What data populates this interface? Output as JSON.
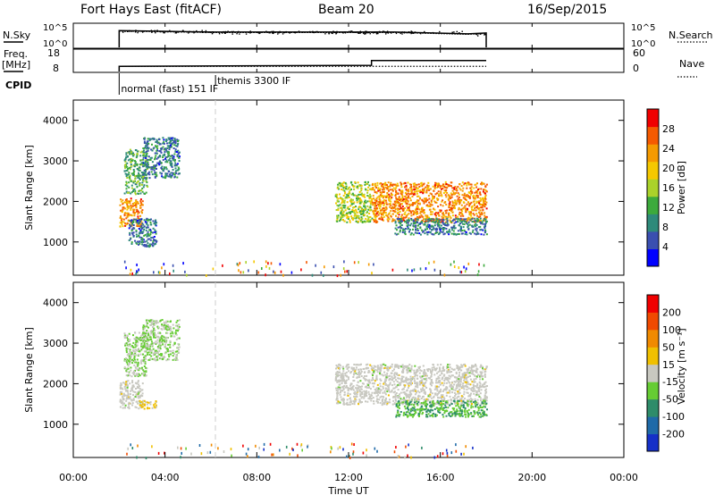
{
  "header": {
    "station": "Fort Hays East (fitACF)",
    "beam": "Beam 20",
    "date": "16/Sep/2015"
  },
  "nsky_panel": {
    "left_label": "N.Sky",
    "left_ticks": [
      "10^5",
      "10^0"
    ],
    "right_ticks": [
      "10^5",
      "10^0"
    ],
    "right_label": "N.Search"
  },
  "freq_panel": {
    "left_label_line1": "Freq.",
    "left_label_line2": "[MHz]",
    "left_ticks": [
      "18",
      "8"
    ],
    "right_ticks": [
      "60",
      "0"
    ],
    "right_label": "Nave"
  },
  "cpid": {
    "label": "CPID",
    "modes": [
      {
        "text": "normal (fast) 151 IF",
        "start_hour": 2.0
      },
      {
        "text": "themis 3300 IF",
        "start_hour": 6.2
      }
    ]
  },
  "x_axis": {
    "label": "Time UT",
    "ticks": [
      "00:00",
      "04:00",
      "08:00",
      "12:00",
      "16:00",
      "20:00",
      "00:00"
    ]
  },
  "power_colorbar": {
    "label": "Power [dB]",
    "ticks": [
      "28",
      "24",
      "20",
      "16",
      "12",
      "8",
      "4"
    ],
    "colors": [
      "#0000ff",
      "#3a4fb0",
      "#2e8a7a",
      "#3caa3c",
      "#aad22a",
      "#f5c800",
      "#f59a00",
      "#f55a00",
      "#f00000"
    ]
  },
  "velocity_colorbar": {
    "label": "Velocity [m s⁻¹]",
    "ticks": [
      "200",
      "100",
      "50",
      "15",
      "-15",
      "-50",
      "-100",
      "-200"
    ],
    "colors": [
      "#1530c8",
      "#1f6aa8",
      "#2e8c6a",
      "#66cc33",
      "#c8c8c0",
      "#f0c000",
      "#f08a00",
      "#f04a00",
      "#f00000"
    ]
  },
  "chart_data": [
    {
      "type": "line",
      "title": "Fort Hays East (fitACF) Beam 20 16/Sep/2015",
      "xlabel": "Time UT",
      "ylabel": "N.Sky",
      "xlim": [
        0,
        24
      ],
      "ylim_log10": [
        0,
        5
      ],
      "series": [
        {
          "name": "N.Sky",
          "x": [
            2.0,
            6.0,
            10.0,
            14.0,
            17.2,
            18.0
          ],
          "log10_values": [
            3.6,
            3.3,
            3.3,
            3.3,
            2.9,
            3.1
          ]
        },
        {
          "name": "N.Search",
          "x": [
            2.0,
            6.0,
            10.0,
            14.0,
            17.2,
            18.0
          ],
          "log10_values": [
            3.5,
            3.2,
            3.2,
            3.2,
            2.8,
            3.0
          ]
        }
      ]
    },
    {
      "type": "line",
      "xlabel": "Time UT",
      "ylabel": "Freq. [MHz]",
      "xlim": [
        0,
        24
      ],
      "ylim": [
        8,
        18
      ],
      "right_ylim": [
        0,
        60
      ],
      "series": [
        {
          "name": "Freq.",
          "x": [
            2.0,
            2.0,
            13.0,
            13.0,
            18.0
          ],
          "values": [
            8,
            10.5,
            11.0,
            13.3,
            13.3
          ]
        },
        {
          "name": "Nave",
          "x": [
            2.0,
            18.0
          ],
          "right_values": [
            15,
            15
          ]
        }
      ]
    },
    {
      "type": "heatmap",
      "ylabel": "Slant Range [km]",
      "xlim": [
        0,
        24
      ],
      "ylim": [
        180,
        4500
      ],
      "yticks": [
        1000,
        2000,
        3000,
        4000
      ],
      "colorbar": {
        "label": "Power [dB]",
        "range": [
          0,
          32
        ]
      },
      "echo_regions": [
        {
          "x": [
            2.0,
            3.0
          ],
          "y": [
            1400,
            2100
          ],
          "value": 24
        },
        {
          "x": [
            2.2,
            3.2
          ],
          "y": [
            2200,
            3300
          ],
          "value": 12
        },
        {
          "x": [
            3.0,
            4.6
          ],
          "y": [
            2600,
            3600
          ],
          "value": 8
        },
        {
          "x": [
            2.4,
            3.6
          ],
          "y": [
            900,
            1600
          ],
          "value": 8
        },
        {
          "x": [
            11.4,
            13.0
          ],
          "y": [
            1500,
            2500
          ],
          "value": 16
        },
        {
          "x": [
            13.0,
            18.0
          ],
          "y": [
            1500,
            2500
          ],
          "value": 24
        },
        {
          "x": [
            14.0,
            18.0
          ],
          "y": [
            1200,
            1600
          ],
          "value": 8
        }
      ]
    },
    {
      "type": "heatmap",
      "ylabel": "Slant Range [km]",
      "xlim": [
        0,
        24
      ],
      "ylim": [
        180,
        4500
      ],
      "yticks": [
        1000,
        2000,
        3000,
        4000
      ],
      "colorbar": {
        "label": "Velocity [m s⁻¹]",
        "range": [
          -250,
          250
        ]
      },
      "echo_regions": [
        {
          "x": [
            2.0,
            3.0
          ],
          "y": [
            1400,
            2100
          ],
          "value": 0
        },
        {
          "x": [
            2.2,
            3.2
          ],
          "y": [
            2200,
            3300
          ],
          "value": -30
        },
        {
          "x": [
            3.0,
            4.6
          ],
          "y": [
            2600,
            3600
          ],
          "value": -30
        },
        {
          "x": [
            2.8,
            3.6
          ],
          "y": [
            1400,
            1600
          ],
          "value": 40
        },
        {
          "x": [
            11.4,
            18.0
          ],
          "y": [
            1500,
            2500
          ],
          "value": 0
        },
        {
          "x": [
            14.0,
            18.0
          ],
          "y": [
            1200,
            1600
          ],
          "value": -80
        }
      ]
    }
  ]
}
